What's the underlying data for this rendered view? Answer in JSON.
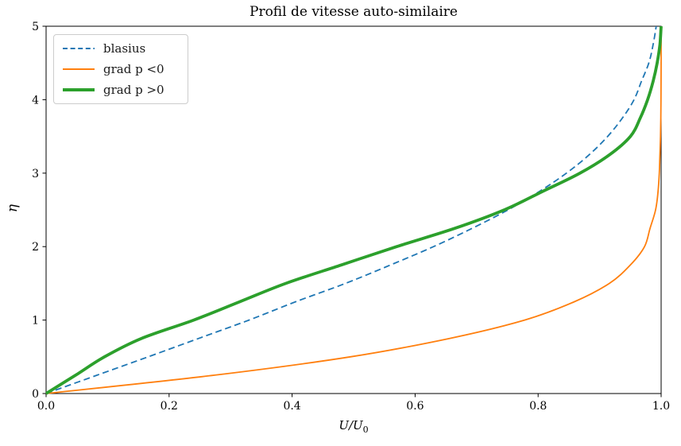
{
  "figure": {
    "background": "#ffffff",
    "text_color": "#000000",
    "spine_color": "#000000"
  },
  "chart_data": {
    "type": "line",
    "title": "Profil de vitesse auto-similaire",
    "xlabel": "U/U₀",
    "xlabel_main": "U/U",
    "xlabel_sub": "0",
    "ylabel": "η",
    "xlim": [
      0.0,
      1.0
    ],
    "ylim": [
      0,
      5
    ],
    "xticks": [
      0.0,
      0.2,
      0.4,
      0.6,
      0.8,
      1.0
    ],
    "xtick_labels": [
      "0.0",
      "0.2",
      "0.4",
      "0.6",
      "0.8",
      "1.0"
    ],
    "yticks": [
      0,
      1,
      2,
      3,
      4,
      5
    ],
    "ytick_labels": [
      "0",
      "1",
      "2",
      "3",
      "4",
      "5"
    ],
    "grid": false,
    "legend_position": "upper left",
    "x_is": "U/U0 (velocity ratio)",
    "y_is": "eta (similarity variable)",
    "eta": [
      0,
      0.25,
      0.5,
      0.75,
      1,
      1.25,
      1.5,
      1.75,
      2,
      2.25,
      2.5,
      2.75,
      3,
      3.25,
      3.5,
      3.75,
      4,
      4.25,
      4.5,
      4.75,
      5
    ],
    "series": [
      {
        "name": "blasius",
        "slug": "blasius",
        "color": "#1f77b4",
        "style": "dashed",
        "line_width": 1.8,
        "U": [
          0,
          0.083,
          0.166,
          0.248,
          0.33,
          0.406,
          0.487,
          0.56,
          0.63,
          0.693,
          0.751,
          0.802,
          0.846,
          0.883,
          0.913,
          0.937,
          0.956,
          0.968,
          0.98,
          0.987,
          0.992
        ]
      },
      {
        "name": "grad p <0",
        "slug": "grad-p-neg",
        "color": "#ff7f0e",
        "style": "solid",
        "line_width": 1.8,
        "U": [
          0,
          0.274,
          0.495,
          0.656,
          0.778,
          0.859,
          0.916,
          0.95,
          0.973,
          0.982,
          0.991,
          0.995,
          0.997,
          0.998,
          0.999,
          0.9995,
          0.9998,
          0.9999,
          1,
          1,
          1
        ]
      },
      {
        "name": "grad p >0",
        "slug": "grad-p-pos",
        "color": "#2ca02c",
        "style": "solid",
        "line_width": 3.8,
        "U": [
          0,
          0.048,
          0.095,
          0.155,
          0.24,
          0.315,
          0.39,
          0.48,
          0.57,
          0.665,
          0.745,
          0.807,
          0.868,
          0.916,
          0.95,
          0.966,
          0.978,
          0.987,
          0.9935,
          0.998,
          1
        ]
      }
    ]
  },
  "legend": {
    "items": [
      {
        "label": "blasius"
      },
      {
        "label": "grad p <0"
      },
      {
        "label": "grad p >0"
      }
    ]
  }
}
